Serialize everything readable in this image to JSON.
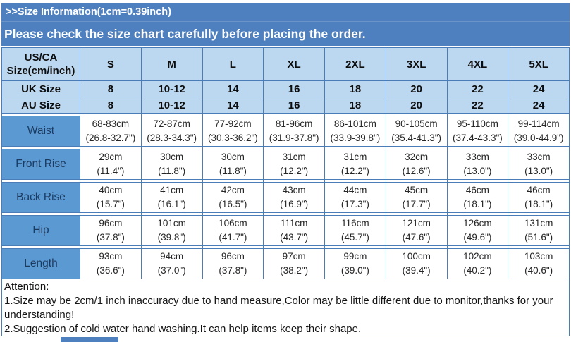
{
  "banner": {
    "size_info_title": ">>Size Information(1cm=0.39inch)",
    "check_notice": "Please check the size chart carefully before placing the order."
  },
  "size_chart": {
    "corner_header": "US/CA\nSize(cm/inch)",
    "size_columns": [
      "S",
      "M",
      "L",
      "XL",
      "2XL",
      "3XL",
      "4XL",
      "5XL"
    ],
    "size_rows": [
      {
        "label": "UK Size",
        "values": [
          "8",
          "10-12",
          "14",
          "16",
          "18",
          "20",
          "22",
          "24"
        ]
      },
      {
        "label": "AU Size",
        "values": [
          "8",
          "10-12",
          "14",
          "16",
          "18",
          "20",
          "22",
          "24"
        ]
      }
    ],
    "measurement_rows": [
      {
        "label": "Waist",
        "values_cm": [
          "68-83cm",
          "72-87cm",
          "77-92cm",
          "81-96cm",
          "86-101cm",
          "90-105cm",
          "95-110cm",
          "99-114cm"
        ],
        "values_inch": [
          "(26.8-32.7\")",
          "(28.3-34.3\")",
          "(30.3-36.2\")",
          "(31.9-37.8\")",
          "(33.9-39.8\")",
          "(35.4-41.3\")",
          "(37.4-43.3\")",
          "(39.0-44.9\")"
        ]
      },
      {
        "label": "Front Rise",
        "values_cm": [
          "29cm",
          "30cm",
          "30cm",
          "31cm",
          "31cm",
          "32cm",
          "33cm",
          "33cm"
        ],
        "values_inch": [
          "(11.4\")",
          "(11.8\")",
          "(11.8\")",
          "(12.2\")",
          "(12.2\")",
          "(12.6\")",
          "(13.0\")",
          "(13.0\")"
        ]
      },
      {
        "label": "Back Rise",
        "values_cm": [
          "40cm",
          "41cm",
          "42cm",
          "43cm",
          "44cm",
          "45cm",
          "46cm",
          "46cm"
        ],
        "values_inch": [
          "(15.7\")",
          "(16.1\")",
          "(16.5\")",
          "(16.9\")",
          "(17.3\")",
          "(17.7\")",
          "(18.1\")",
          "(18.1\")"
        ]
      },
      {
        "label": "Hip",
        "values_cm": [
          "96cm",
          "101cm",
          "106cm",
          "111cm",
          "116cm",
          "121cm",
          "126cm",
          "131cm"
        ],
        "values_inch": [
          "(37.8\")",
          "(39.8\")",
          "(41.7\")",
          "(43.7\")",
          "(45.7\")",
          "(47.6\")",
          "(49.6\")",
          "(51.6\")"
        ]
      },
      {
        "label": "Length",
        "values_cm": [
          "93cm",
          "94cm",
          "96cm",
          "97cm",
          "99cm",
          "100cm",
          "102cm",
          "103cm"
        ],
        "values_inch": [
          "(36.6\")",
          "(37.0\")",
          "(37.8\")",
          "(38.2\")",
          "(39.0\")",
          "(39.4\")",
          "(40.2\")",
          "(40.6\")"
        ]
      }
    ]
  },
  "attention": {
    "title": "Attention:",
    "notes": [
      "1.Size may be 2cm/1 inch inaccuracy due to hand measure,Color may be little different due to monitor,thanks for your understanding!",
      "2.Suggestion of cold water hand washing.It can help items keep their shape."
    ]
  },
  "colors": {
    "banner_blue": "#4e7fbe",
    "light_blue": "#bcd8f0",
    "label_blue": "#5b99d3",
    "border_blue": "#4a7cb8"
  }
}
